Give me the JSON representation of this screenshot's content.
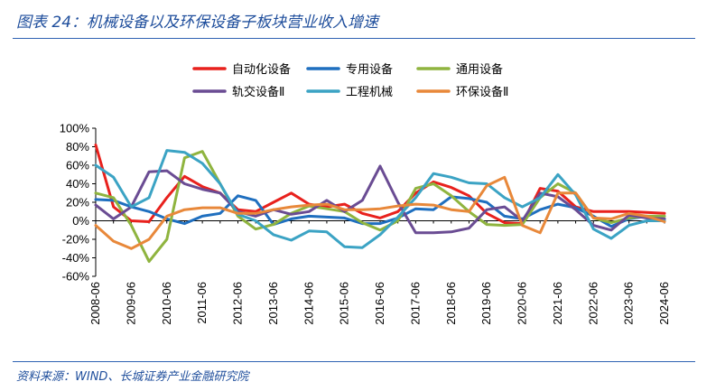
{
  "figure_title": "图表 24：机械设备以及环保设备子板块营业收入增速",
  "source": "资料来源：WIND、长城证券产业金融研究院",
  "chart_data": {
    "type": "line",
    "title": "",
    "xlabel": "",
    "ylabel": "",
    "ylim": [
      -60,
      100
    ],
    "y_ticks": [
      -60,
      -40,
      -20,
      0,
      20,
      40,
      60,
      80,
      100
    ],
    "y_tick_labels": [
      "-60%",
      "-40%",
      "-20%",
      "0%",
      "20%",
      "40%",
      "60%",
      "80%",
      "100%"
    ],
    "x_tick_labels": [
      "2008-06",
      "2009-06",
      "2010-06",
      "2011-06",
      "2012-06",
      "2013-06",
      "2014-06",
      "2015-06",
      "2016-06",
      "2017-06",
      "2018-06",
      "2019-06",
      "2020-06",
      "2021-06",
      "2022-06",
      "2023-06",
      "2024-06"
    ],
    "x_count": 33,
    "grid": false,
    "legend_position": "top",
    "series": [
      {
        "name": "自动化设备",
        "color": "#e8211d",
        "values": [
          82,
          15,
          0,
          -1,
          25,
          48,
          37,
          30,
          12,
          10,
          20,
          30,
          18,
          15,
          18,
          8,
          3,
          10,
          30,
          42,
          36,
          27,
          8,
          -2,
          -3,
          35,
          32,
          15,
          10,
          10,
          10,
          9,
          8
        ]
      },
      {
        "name": "专用设备",
        "color": "#1f6fbf",
        "values": [
          23,
          22,
          15,
          10,
          2,
          -3,
          5,
          8,
          27,
          22,
          -4,
          2,
          5,
          4,
          3,
          -3,
          -3,
          3,
          13,
          12,
          26,
          24,
          20,
          5,
          2,
          12,
          18,
          14,
          5,
          -6,
          2,
          5,
          2
        ]
      },
      {
        "name": "通用设备",
        "color": "#8fb43f",
        "values": [
          30,
          25,
          -5,
          -44,
          -20,
          68,
          75,
          40,
          5,
          -9,
          -4,
          8,
          16,
          13,
          10,
          -2,
          -10,
          0,
          35,
          40,
          27,
          10,
          -4,
          -5,
          -4,
          25,
          40,
          30,
          3,
          -2,
          3,
          5,
          5
        ]
      },
      {
        "name": "轨交设备Ⅱ",
        "color": "#6a4c93",
        "values": [
          17,
          2,
          15,
          53,
          54,
          40,
          34,
          30,
          10,
          5,
          12,
          7,
          10,
          22,
          10,
          22,
          59,
          20,
          -13,
          -13,
          -12,
          -8,
          12,
          15,
          0,
          30,
          26,
          12,
          -5,
          -10,
          6,
          3,
          2
        ]
      },
      {
        "name": "工程机械",
        "color": "#3ba3c4",
        "values": [
          60,
          47,
          15,
          25,
          76,
          74,
          62,
          40,
          7,
          0,
          -15,
          -21,
          -11,
          -12,
          -28,
          -29,
          -15,
          4,
          25,
          51,
          47,
          41,
          40,
          25,
          15,
          25,
          50,
          28,
          -9,
          -19,
          -5,
          0,
          0
        ]
      },
      {
        "name": "环保设备Ⅱ",
        "color": "#e8883a",
        "values": [
          -5,
          -22,
          -30,
          -20,
          5,
          12,
          14,
          14,
          8,
          8,
          12,
          15,
          17,
          18,
          12,
          12,
          13,
          16,
          18,
          17,
          12,
          10,
          38,
          47,
          -5,
          -13,
          30,
          30,
          3,
          2,
          8,
          5,
          -1
        ]
      }
    ]
  }
}
